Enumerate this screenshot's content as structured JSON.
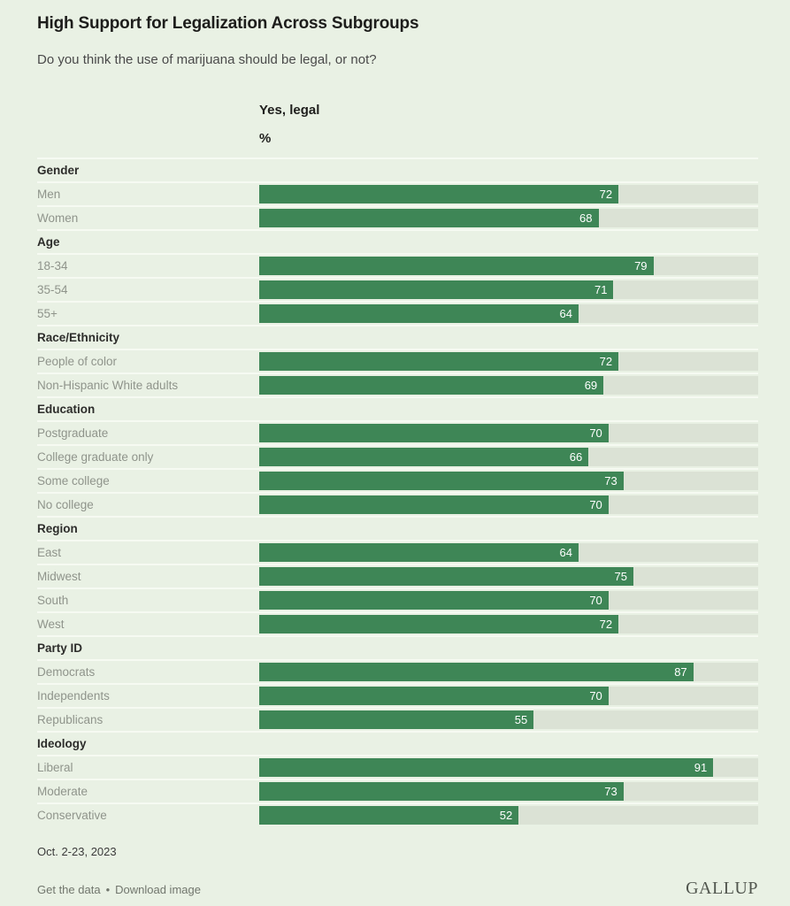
{
  "page": {
    "title": "High Support for Legalization Across Subgroups",
    "subtitle": "Do you think the use of marijuana should be legal, or not?",
    "date_note": "Oct. 2-23, 2023",
    "footer_links": {
      "get_data": "Get the data",
      "download": "Download image",
      "separator": "•"
    },
    "brand": "GALLUP",
    "colors": {
      "page_bg": "#e9f1e4",
      "bar": "#3e8656",
      "track": "#dbe2d5",
      "row_separator": "#f6faf2"
    }
  },
  "chart_data": {
    "type": "bar",
    "orientation": "horizontal",
    "title": "High Support for Legalization Across Subgroups",
    "subtitle": "Do you think the use of marijuana should be legal, or not?",
    "value_header": "Yes, legal",
    "unit_header": "%",
    "xlim": [
      0,
      100
    ],
    "unit": "percent",
    "legend_position": "none",
    "grid": false,
    "groups": [
      {
        "label": "Gender",
        "rows": [
          {
            "label": "Men",
            "value": 72
          },
          {
            "label": "Women",
            "value": 68
          }
        ]
      },
      {
        "label": "Age",
        "rows": [
          {
            "label": "18-34",
            "value": 79
          },
          {
            "label": "35-54",
            "value": 71
          },
          {
            "label": "55+",
            "value": 64
          }
        ]
      },
      {
        "label": "Race/Ethnicity",
        "rows": [
          {
            "label": "People of color",
            "value": 72
          },
          {
            "label": "Non-Hispanic White adults",
            "value": 69
          }
        ]
      },
      {
        "label": "Education",
        "rows": [
          {
            "label": "Postgraduate",
            "value": 70
          },
          {
            "label": "College graduate only",
            "value": 66
          },
          {
            "label": "Some college",
            "value": 73
          },
          {
            "label": "No college",
            "value": 70
          }
        ]
      },
      {
        "label": "Region",
        "rows": [
          {
            "label": "East",
            "value": 64
          },
          {
            "label": "Midwest",
            "value": 75
          },
          {
            "label": "South",
            "value": 70
          },
          {
            "label": "West",
            "value": 72
          }
        ]
      },
      {
        "label": "Party ID",
        "rows": [
          {
            "label": "Democrats",
            "value": 87
          },
          {
            "label": "Independents",
            "value": 70
          },
          {
            "label": "Republicans",
            "value": 55
          }
        ]
      },
      {
        "label": "Ideology",
        "rows": [
          {
            "label": "Liberal",
            "value": 91
          },
          {
            "label": "Moderate",
            "value": 73
          },
          {
            "label": "Conservative",
            "value": 52
          }
        ]
      }
    ]
  }
}
